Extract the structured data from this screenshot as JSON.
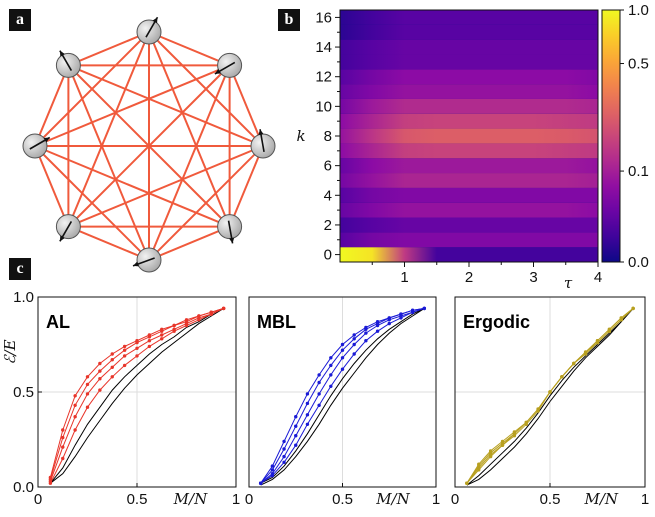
{
  "panels": {
    "a": "a",
    "b": "b",
    "c": "c"
  },
  "colors": {
    "edge": "#f05a3c",
    "node": "#a8a8a8",
    "al": "#e8352a",
    "mbl": "#1a1ad6",
    "ergodic": "#b8a020",
    "reference": "#000000"
  },
  "chart_data": [
    {
      "type": "heatmap",
      "panel": "b",
      "xlabel": "τ",
      "ylabel": "k",
      "xlim": [
        0,
        4
      ],
      "ylim": [
        -0.5,
        16.5
      ],
      "x_ticks": [
        "1",
        "2",
        "3",
        "4"
      ],
      "y_ticks": [
        "0",
        "2",
        "4",
        "6",
        "8",
        "10",
        "12",
        "14",
        "16"
      ],
      "colorbar": {
        "ticks": [
          "0.0",
          "0.1",
          "0.5",
          "1.0"
        ],
        "colormap": "plasma"
      },
      "k_values": [
        0,
        1,
        2,
        3,
        4,
        5,
        6,
        7,
        8,
        9,
        10,
        11,
        12,
        13,
        14,
        15,
        16
      ],
      "tau_values": [
        0.0,
        0.5,
        1.0,
        1.5,
        2.0,
        2.5,
        3.0,
        3.5,
        4.0
      ],
      "values": [
        [
          1.0,
          0.85,
          0.15,
          0.02,
          0.02,
          0.02,
          0.02,
          0.02,
          0.02
        ],
        [
          0.03,
          0.05,
          0.06,
          0.06,
          0.06,
          0.06,
          0.06,
          0.06,
          0.06
        ],
        [
          0.02,
          0.03,
          0.04,
          0.04,
          0.04,
          0.04,
          0.04,
          0.04,
          0.04
        ],
        [
          0.04,
          0.06,
          0.08,
          0.08,
          0.08,
          0.08,
          0.08,
          0.08,
          0.07
        ],
        [
          0.03,
          0.05,
          0.06,
          0.06,
          0.06,
          0.06,
          0.06,
          0.06,
          0.06
        ],
        [
          0.05,
          0.08,
          0.11,
          0.11,
          0.11,
          0.11,
          0.11,
          0.11,
          0.1
        ],
        [
          0.04,
          0.07,
          0.09,
          0.09,
          0.09,
          0.09,
          0.09,
          0.09,
          0.08
        ],
        [
          0.07,
          0.11,
          0.16,
          0.17,
          0.17,
          0.17,
          0.17,
          0.16,
          0.15
        ],
        [
          0.08,
          0.14,
          0.22,
          0.24,
          0.24,
          0.24,
          0.24,
          0.23,
          0.21
        ],
        [
          0.07,
          0.11,
          0.16,
          0.17,
          0.17,
          0.17,
          0.17,
          0.16,
          0.15
        ],
        [
          0.05,
          0.09,
          0.12,
          0.12,
          0.12,
          0.12,
          0.12,
          0.12,
          0.11
        ],
        [
          0.04,
          0.06,
          0.08,
          0.08,
          0.08,
          0.08,
          0.08,
          0.08,
          0.07
        ],
        [
          0.03,
          0.05,
          0.07,
          0.07,
          0.07,
          0.07,
          0.07,
          0.07,
          0.06
        ],
        [
          0.02,
          0.03,
          0.04,
          0.04,
          0.04,
          0.04,
          0.04,
          0.04,
          0.04
        ],
        [
          0.02,
          0.03,
          0.04,
          0.04,
          0.04,
          0.04,
          0.04,
          0.04,
          0.04
        ],
        [
          0.01,
          0.02,
          0.03,
          0.03,
          0.03,
          0.03,
          0.03,
          0.03,
          0.03
        ],
        [
          0.01,
          0.02,
          0.03,
          0.03,
          0.03,
          0.03,
          0.03,
          0.03,
          0.03
        ]
      ]
    },
    {
      "type": "line",
      "panel": "c",
      "ylabel": "ℰ/E",
      "xlabel": "M/N",
      "xlim": [
        0,
        1
      ],
      "ylim": [
        0,
        1
      ],
      "x_ticks": [
        "0",
        "0.5",
        "1"
      ],
      "y_ticks": [
        "0.0",
        "0.5",
        "1.0"
      ],
      "grid": true,
      "x": [
        0.0625,
        0.125,
        0.1875,
        0.25,
        0.3125,
        0.375,
        0.4375,
        0.5,
        0.5625,
        0.625,
        0.6875,
        0.75,
        0.8125,
        0.875,
        0.9375
      ],
      "subplots": [
        {
          "title": "AL",
          "color_key": "al",
          "series": [
            {
              "values": [
                0.05,
                0.3,
                0.48,
                0.58,
                0.65,
                0.7,
                0.74,
                0.77,
                0.8,
                0.83,
                0.85,
                0.88,
                0.9,
                0.92,
                0.94
              ]
            },
            {
              "values": [
                0.04,
                0.26,
                0.43,
                0.54,
                0.61,
                0.67,
                0.72,
                0.76,
                0.79,
                0.82,
                0.85,
                0.87,
                0.9,
                0.92,
                0.94
              ]
            },
            {
              "values": [
                0.03,
                0.21,
                0.37,
                0.49,
                0.57,
                0.63,
                0.69,
                0.73,
                0.77,
                0.8,
                0.83,
                0.86,
                0.89,
                0.91,
                0.94
              ]
            },
            {
              "values": [
                0.02,
                0.15,
                0.3,
                0.42,
                0.51,
                0.58,
                0.64,
                0.69,
                0.74,
                0.78,
                0.82,
                0.85,
                0.88,
                0.91,
                0.94
              ]
            }
          ],
          "reference": [
            {
              "values": [
                0.02,
                0.1,
                0.22,
                0.33,
                0.42,
                0.51,
                0.58,
                0.64,
                0.7,
                0.75,
                0.79,
                0.84,
                0.87,
                0.91,
                0.94
              ]
            },
            {
              "values": [
                0.02,
                0.07,
                0.16,
                0.26,
                0.35,
                0.44,
                0.52,
                0.59,
                0.65,
                0.71,
                0.76,
                0.81,
                0.86,
                0.9,
                0.94
              ]
            }
          ]
        },
        {
          "title": "MBL",
          "color_key": "mbl",
          "series": [
            {
              "values": [
                0.02,
                0.11,
                0.24,
                0.37,
                0.49,
                0.59,
                0.68,
                0.75,
                0.8,
                0.84,
                0.87,
                0.89,
                0.91,
                0.93,
                0.94
              ]
            },
            {
              "values": [
                0.02,
                0.09,
                0.2,
                0.32,
                0.44,
                0.55,
                0.64,
                0.72,
                0.78,
                0.83,
                0.86,
                0.89,
                0.91,
                0.93,
                0.94
              ]
            },
            {
              "values": [
                0.02,
                0.07,
                0.16,
                0.27,
                0.38,
                0.49,
                0.59,
                0.68,
                0.75,
                0.81,
                0.85,
                0.88,
                0.9,
                0.92,
                0.94
              ]
            },
            {
              "values": [
                0.02,
                0.06,
                0.13,
                0.22,
                0.33,
                0.43,
                0.53,
                0.62,
                0.7,
                0.77,
                0.82,
                0.86,
                0.89,
                0.92,
                0.94
              ]
            }
          ],
          "reference": [
            {
              "values": [
                0.02,
                0.05,
                0.11,
                0.19,
                0.28,
                0.38,
                0.48,
                0.57,
                0.65,
                0.72,
                0.78,
                0.83,
                0.87,
                0.91,
                0.94
              ]
            },
            {
              "values": [
                0.01,
                0.04,
                0.09,
                0.16,
                0.24,
                0.33,
                0.43,
                0.52,
                0.6,
                0.68,
                0.75,
                0.81,
                0.86,
                0.9,
                0.94
              ]
            }
          ]
        },
        {
          "title": "Ergodic",
          "color_key": "ergodic",
          "series": [
            {
              "values": [
                0.02,
                0.12,
                0.19,
                0.24,
                0.29,
                0.34,
                0.41,
                0.5,
                0.58,
                0.65,
                0.71,
                0.77,
                0.83,
                0.89,
                0.94
              ]
            },
            {
              "values": [
                0.02,
                0.11,
                0.18,
                0.23,
                0.28,
                0.34,
                0.41,
                0.5,
                0.58,
                0.65,
                0.71,
                0.77,
                0.83,
                0.89,
                0.94
              ]
            },
            {
              "values": [
                0.02,
                0.1,
                0.17,
                0.22,
                0.28,
                0.34,
                0.41,
                0.5,
                0.58,
                0.65,
                0.71,
                0.76,
                0.82,
                0.88,
                0.94
              ]
            },
            {
              "values": [
                0.02,
                0.09,
                0.16,
                0.22,
                0.27,
                0.33,
                0.4,
                0.5,
                0.58,
                0.65,
                0.7,
                0.76,
                0.82,
                0.88,
                0.94
              ]
            }
          ],
          "reference": [
            {
              "values": [
                0.01,
                0.06,
                0.12,
                0.18,
                0.24,
                0.31,
                0.39,
                0.48,
                0.56,
                0.63,
                0.69,
                0.75,
                0.81,
                0.87,
                0.94
              ]
            },
            {
              "values": [
                0.01,
                0.04,
                0.09,
                0.15,
                0.21,
                0.28,
                0.36,
                0.45,
                0.53,
                0.61,
                0.68,
                0.74,
                0.8,
                0.87,
                0.94
              ]
            }
          ]
        }
      ]
    }
  ]
}
